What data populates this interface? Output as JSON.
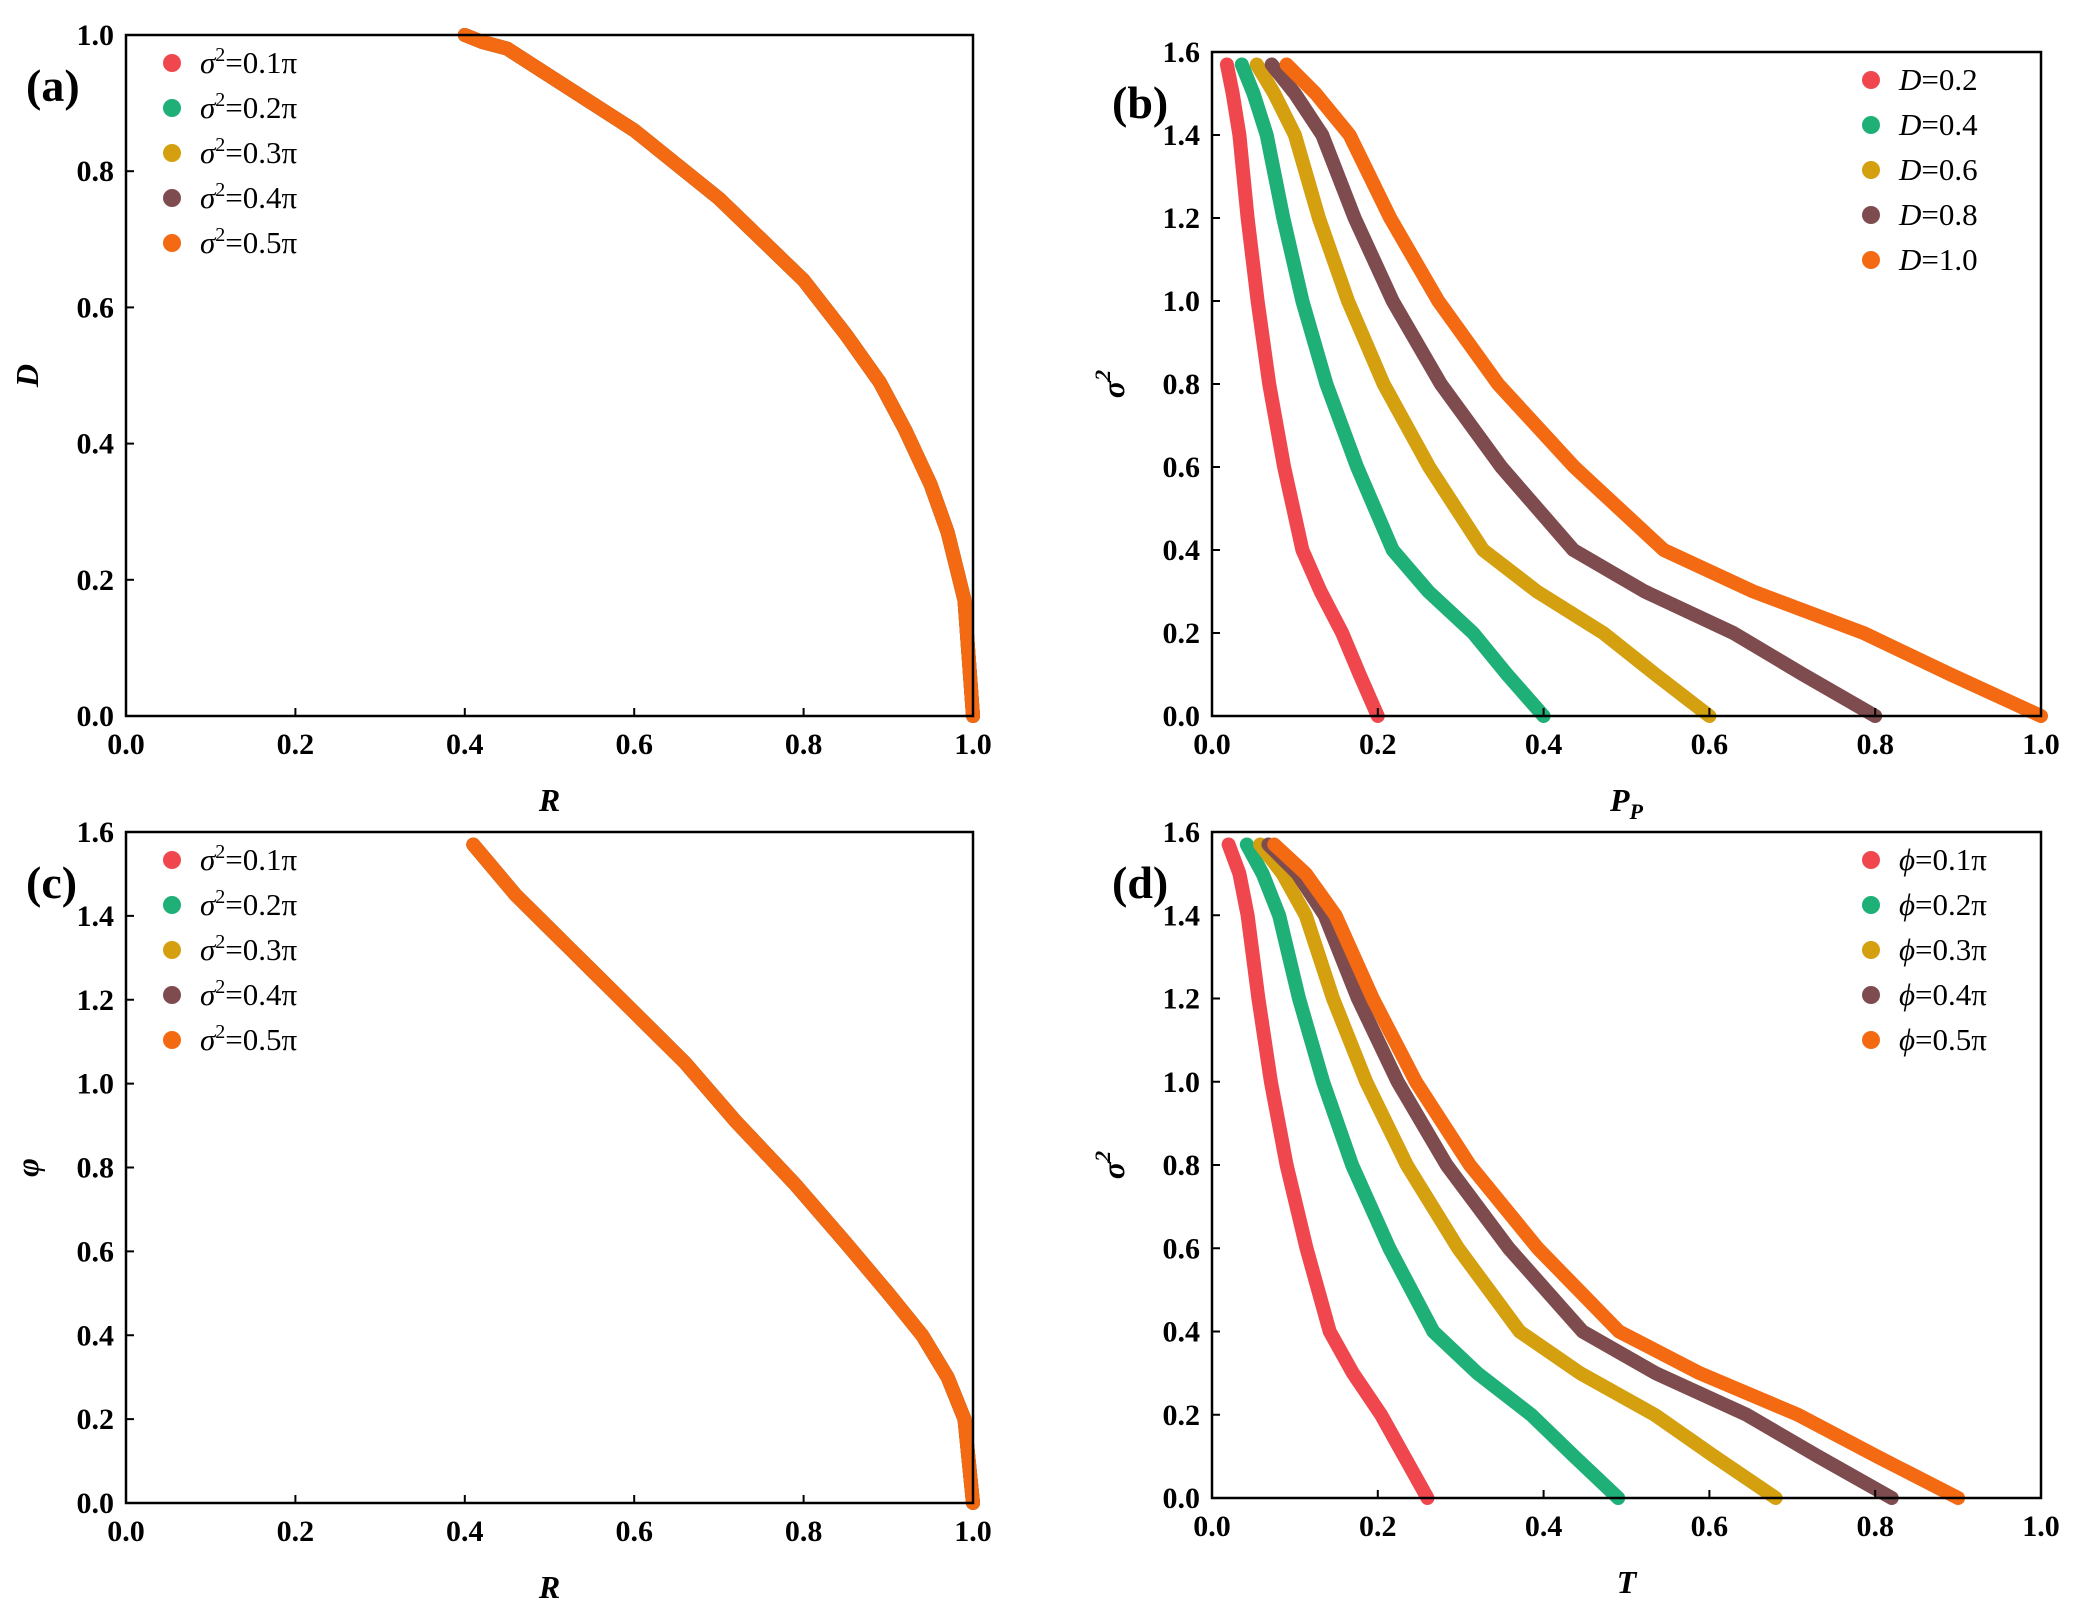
{
  "figure": {
    "panels": [
      "a",
      "b",
      "c",
      "d"
    ]
  },
  "colors": {
    "red": "#f0474f",
    "green": "#1fb078",
    "gold": "#d4a010",
    "brown": "#7e4c4e",
    "orange": "#f46a12"
  },
  "chart_data": [
    {
      "id": "a",
      "type": "line",
      "panel_label": "(a)",
      "xlabel": "R",
      "ylabel": "D",
      "xlim": [
        0.0,
        1.0
      ],
      "ylim": [
        0.0,
        1.0
      ],
      "xticks": [
        "0.0",
        "0.2",
        "0.4",
        "0.6",
        "0.8",
        "1.0"
      ],
      "yticks": [
        "0.0",
        "0.2",
        "0.4",
        "0.6",
        "0.8",
        "1.0"
      ],
      "legend_position": "top-left",
      "legend": [
        "σ²=0.1π",
        "σ²=0.2π",
        "σ²=0.3π",
        "σ²=0.4π",
        "σ²=0.5π"
      ],
      "note": "All five series coincide on one curve; the top series (orange) is visible.",
      "series": [
        {
          "name": "σ²=0.1π",
          "color": "red",
          "x": [
            1.0,
            0.99,
            0.97,
            0.95,
            0.92,
            0.89,
            0.85,
            0.8,
            0.75,
            0.7,
            0.65,
            0.6,
            0.55,
            0.5,
            0.45,
            0.42,
            0.4
          ],
          "y": [
            0.0,
            0.17,
            0.27,
            0.34,
            0.42,
            0.49,
            0.56,
            0.64,
            0.7,
            0.76,
            0.81,
            0.86,
            0.9,
            0.94,
            0.98,
            0.99,
            1.0
          ]
        },
        {
          "name": "σ²=0.2π",
          "color": "green",
          "x": [
            1.0,
            0.99,
            0.97,
            0.95,
            0.92,
            0.89,
            0.85,
            0.8,
            0.75,
            0.7,
            0.65,
            0.6,
            0.55,
            0.5,
            0.45,
            0.42,
            0.4
          ],
          "y": [
            0.0,
            0.17,
            0.27,
            0.34,
            0.42,
            0.49,
            0.56,
            0.64,
            0.7,
            0.76,
            0.81,
            0.86,
            0.9,
            0.94,
            0.98,
            0.99,
            1.0
          ]
        },
        {
          "name": "σ²=0.3π",
          "color": "gold",
          "x": [
            1.0,
            0.99,
            0.97,
            0.95,
            0.92,
            0.89,
            0.85,
            0.8,
            0.75,
            0.7,
            0.65,
            0.6,
            0.55,
            0.5,
            0.45,
            0.42,
            0.4
          ],
          "y": [
            0.0,
            0.17,
            0.27,
            0.34,
            0.42,
            0.49,
            0.56,
            0.64,
            0.7,
            0.76,
            0.81,
            0.86,
            0.9,
            0.94,
            0.98,
            0.99,
            1.0
          ]
        },
        {
          "name": "σ²=0.4π",
          "color": "brown",
          "x": [
            1.0,
            0.99,
            0.97,
            0.95,
            0.92,
            0.89,
            0.85,
            0.8,
            0.75,
            0.7,
            0.65,
            0.6,
            0.55,
            0.5,
            0.45,
            0.42,
            0.4
          ],
          "y": [
            0.0,
            0.17,
            0.27,
            0.34,
            0.42,
            0.49,
            0.56,
            0.64,
            0.7,
            0.76,
            0.81,
            0.86,
            0.9,
            0.94,
            0.98,
            0.99,
            1.0
          ]
        },
        {
          "name": "σ²=0.5π",
          "color": "orange",
          "x": [
            1.0,
            0.99,
            0.97,
            0.95,
            0.92,
            0.89,
            0.85,
            0.8,
            0.75,
            0.7,
            0.65,
            0.6,
            0.55,
            0.5,
            0.45,
            0.42,
            0.4
          ],
          "y": [
            0.0,
            0.17,
            0.27,
            0.34,
            0.42,
            0.49,
            0.56,
            0.64,
            0.7,
            0.76,
            0.81,
            0.86,
            0.9,
            0.94,
            0.98,
            0.99,
            1.0
          ]
        }
      ]
    },
    {
      "id": "b",
      "type": "line",
      "panel_label": "(b)",
      "xlabel": "P",
      "xlabel_sub": "P",
      "ylabel": "σ",
      "ylabel_sup": "2",
      "xlim": [
        0.0,
        1.0
      ],
      "ylim": [
        0.0,
        1.6
      ],
      "xticks": [
        "0.0",
        "0.2",
        "0.4",
        "0.6",
        "0.8",
        "1.0"
      ],
      "yticks": [
        "0.0",
        "0.2",
        "0.4",
        "0.6",
        "0.8",
        "1.0",
        "1.2",
        "1.4",
        "1.6"
      ],
      "legend_position": "top-right",
      "legend": [
        "D=0.2",
        "D=0.4",
        "D=0.6",
        "D=0.8",
        "D=1.0"
      ],
      "series": [
        {
          "name": "D=0.2",
          "color": "red",
          "x": [
            0.2,
            0.178,
            0.157,
            0.131,
            0.109,
            0.087,
            0.069,
            0.055,
            0.043,
            0.033,
            0.025,
            0.018
          ],
          "y": [
            0.0,
            0.1,
            0.2,
            0.3,
            0.4,
            0.6,
            0.8,
            1.0,
            1.2,
            1.4,
            1.5,
            1.57
          ]
        },
        {
          "name": "D=0.4",
          "color": "green",
          "x": [
            0.4,
            0.356,
            0.315,
            0.261,
            0.218,
            0.175,
            0.138,
            0.109,
            0.086,
            0.066,
            0.05,
            0.036
          ],
          "y": [
            0.0,
            0.1,
            0.2,
            0.3,
            0.4,
            0.6,
            0.8,
            1.0,
            1.2,
            1.4,
            1.5,
            1.57
          ]
        },
        {
          "name": "D=0.6",
          "color": "gold",
          "x": [
            0.6,
            0.535,
            0.472,
            0.392,
            0.327,
            0.262,
            0.207,
            0.164,
            0.129,
            0.1,
            0.075,
            0.054
          ],
          "y": [
            0.0,
            0.1,
            0.2,
            0.3,
            0.4,
            0.6,
            0.8,
            1.0,
            1.2,
            1.4,
            1.5,
            1.57
          ]
        },
        {
          "name": "D=0.8",
          "color": "brown",
          "x": [
            0.8,
            0.713,
            0.629,
            0.522,
            0.436,
            0.349,
            0.276,
            0.218,
            0.172,
            0.133,
            0.1,
            0.072
          ],
          "y": [
            0.0,
            0.1,
            0.2,
            0.3,
            0.4,
            0.6,
            0.8,
            1.0,
            1.2,
            1.4,
            1.5,
            1.57
          ]
        },
        {
          "name": "D=1.0",
          "color": "orange",
          "x": [
            1.0,
            0.891,
            0.786,
            0.653,
            0.545,
            0.437,
            0.345,
            0.273,
            0.215,
            0.166,
            0.125,
            0.09
          ],
          "y": [
            0.0,
            0.1,
            0.2,
            0.3,
            0.4,
            0.6,
            0.8,
            1.0,
            1.2,
            1.4,
            1.5,
            1.57
          ]
        }
      ]
    },
    {
      "id": "c",
      "type": "line",
      "panel_label": "(c)",
      "xlabel": "R",
      "ylabel": "φ",
      "xlim": [
        0.0,
        1.0
      ],
      "ylim": [
        0.0,
        1.6
      ],
      "xticks": [
        "0.0",
        "0.2",
        "0.4",
        "0.6",
        "0.8",
        "1.0"
      ],
      "yticks": [
        "0.0",
        "0.2",
        "0.4",
        "0.6",
        "0.8",
        "1.0",
        "1.2",
        "1.4",
        "1.6"
      ],
      "legend_position": "top-left",
      "legend": [
        "σ²=0.1π",
        "σ²=0.2π",
        "σ²=0.3π",
        "σ²=0.4π",
        "σ²=0.5π"
      ],
      "note": "All five series coincide on one curve; the top series (orange) is visible.",
      "series": [
        {
          "name": "σ²=0.1π",
          "color": "red",
          "x": [
            1.0,
            0.99,
            0.97,
            0.94,
            0.9,
            0.85,
            0.79,
            0.72,
            0.66,
            0.59,
            0.52,
            0.46,
            0.41
          ],
          "y": [
            0.0,
            0.2,
            0.3,
            0.4,
            0.5,
            0.62,
            0.76,
            0.91,
            1.05,
            1.19,
            1.33,
            1.45,
            1.57
          ]
        },
        {
          "name": "σ²=0.2π",
          "color": "green",
          "x": [
            1.0,
            0.99,
            0.97,
            0.94,
            0.9,
            0.85,
            0.79,
            0.72,
            0.66,
            0.59,
            0.52,
            0.46,
            0.41
          ],
          "y": [
            0.0,
            0.2,
            0.3,
            0.4,
            0.5,
            0.62,
            0.76,
            0.91,
            1.05,
            1.19,
            1.33,
            1.45,
            1.57
          ]
        },
        {
          "name": "σ²=0.3π",
          "color": "gold",
          "x": [
            1.0,
            0.99,
            0.97,
            0.94,
            0.9,
            0.85,
            0.79,
            0.72,
            0.66,
            0.59,
            0.52,
            0.46,
            0.41
          ],
          "y": [
            0.0,
            0.2,
            0.3,
            0.4,
            0.5,
            0.62,
            0.76,
            0.91,
            1.05,
            1.19,
            1.33,
            1.45,
            1.57
          ]
        },
        {
          "name": "σ²=0.4π",
          "color": "brown",
          "x": [
            1.0,
            0.99,
            0.97,
            0.94,
            0.9,
            0.85,
            0.79,
            0.72,
            0.66,
            0.59,
            0.52,
            0.46,
            0.41
          ],
          "y": [
            0.0,
            0.2,
            0.3,
            0.4,
            0.5,
            0.62,
            0.76,
            0.91,
            1.05,
            1.19,
            1.33,
            1.45,
            1.57
          ]
        },
        {
          "name": "σ²=0.5π",
          "color": "orange",
          "x": [
            1.0,
            0.99,
            0.97,
            0.94,
            0.9,
            0.85,
            0.79,
            0.72,
            0.66,
            0.59,
            0.52,
            0.46,
            0.41
          ],
          "y": [
            0.0,
            0.2,
            0.3,
            0.4,
            0.5,
            0.62,
            0.76,
            0.91,
            1.05,
            1.19,
            1.33,
            1.45,
            1.57
          ]
        }
      ]
    },
    {
      "id": "d",
      "type": "line",
      "panel_label": "(d)",
      "xlabel": "T",
      "ylabel": "σ",
      "ylabel_sup": "2",
      "xlim": [
        0.0,
        1.0
      ],
      "ylim": [
        0.0,
        1.6
      ],
      "xticks": [
        "0.0",
        "0.2",
        "0.4",
        "0.6",
        "0.8",
        "1.0"
      ],
      "yticks": [
        "0.0",
        "0.2",
        "0.4",
        "0.6",
        "0.8",
        "1.0",
        "1.2",
        "1.4",
        "1.6"
      ],
      "legend_position": "top-right",
      "legend": [
        "ϕ=0.1π",
        "ϕ=0.2π",
        "ϕ=0.3π",
        "ϕ=0.4π",
        "ϕ=0.5π"
      ],
      "series": [
        {
          "name": "ϕ=0.1π",
          "color": "red",
          "x": [
            0.26,
            0.232,
            0.204,
            0.17,
            0.142,
            0.114,
            0.09,
            0.071,
            0.056,
            0.043,
            0.033,
            0.02
          ],
          "y": [
            0.0,
            0.1,
            0.2,
            0.3,
            0.4,
            0.6,
            0.8,
            1.0,
            1.2,
            1.4,
            1.5,
            1.57
          ]
        },
        {
          "name": "ϕ=0.2π",
          "color": "green",
          "x": [
            0.49,
            0.437,
            0.385,
            0.32,
            0.267,
            0.214,
            0.169,
            0.134,
            0.105,
            0.081,
            0.061,
            0.042
          ],
          "y": [
            0.0,
            0.1,
            0.2,
            0.3,
            0.4,
            0.6,
            0.8,
            1.0,
            1.2,
            1.4,
            1.5,
            1.57
          ]
        },
        {
          "name": "ϕ=0.3π",
          "color": "gold",
          "x": [
            0.68,
            0.606,
            0.534,
            0.444,
            0.371,
            0.297,
            0.235,
            0.186,
            0.146,
            0.113,
            0.085,
            0.058
          ],
          "y": [
            0.0,
            0.1,
            0.2,
            0.3,
            0.4,
            0.6,
            0.8,
            1.0,
            1.2,
            1.4,
            1.5,
            1.57
          ]
        },
        {
          "name": "ϕ=0.4π",
          "color": "brown",
          "x": [
            0.82,
            0.731,
            0.645,
            0.535,
            0.447,
            0.358,
            0.283,
            0.224,
            0.176,
            0.136,
            0.103,
            0.068
          ],
          "y": [
            0.0,
            0.1,
            0.2,
            0.3,
            0.4,
            0.6,
            0.8,
            1.0,
            1.2,
            1.4,
            1.5,
            1.57
          ]
        },
        {
          "name": "ϕ=0.5π",
          "color": "orange",
          "x": [
            0.9,
            0.802,
            0.707,
            0.588,
            0.491,
            0.393,
            0.311,
            0.246,
            0.194,
            0.149,
            0.113,
            0.075
          ],
          "y": [
            0.0,
            0.1,
            0.2,
            0.3,
            0.4,
            0.6,
            0.8,
            1.0,
            1.2,
            1.4,
            1.5,
            1.57
          ]
        }
      ]
    }
  ]
}
